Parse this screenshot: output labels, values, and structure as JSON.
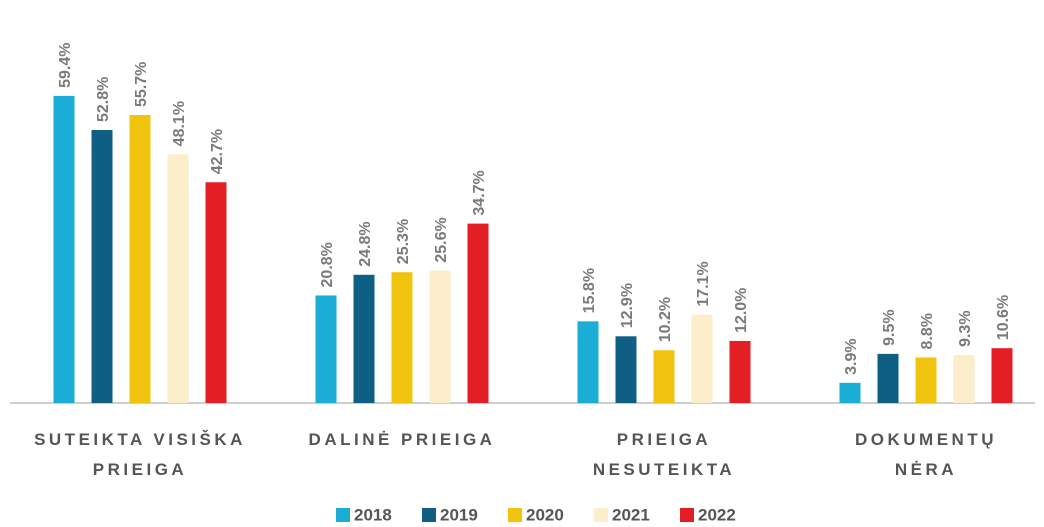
{
  "chart_data": {
    "type": "bar",
    "categories": [
      "SUTEIKTA VISIŠKA\nPRIEIGA",
      "DALINĖ PRIEIGA",
      "PRIEIGA\nNESUTEIKTA",
      "DOKUMENTŲ\nNĖRA"
    ],
    "series": [
      {
        "name": "2018",
        "color": "#1aaed6",
        "values": [
          59.4,
          20.8,
          15.8,
          3.9
        ],
        "value_labels": [
          "59.4%",
          "20.8%",
          "15.8%",
          "3.9%"
        ]
      },
      {
        "name": "2019",
        "color": "#0f5f85",
        "values": [
          52.8,
          24.8,
          12.9,
          9.5
        ],
        "value_labels": [
          "52.8%",
          "24.8%",
          "12.9%",
          "9.5%"
        ]
      },
      {
        "name": "2020",
        "color": "#f0c30f",
        "values": [
          55.7,
          25.3,
          10.2,
          8.8
        ],
        "value_labels": [
          "55.7%",
          "25.3%",
          "10.2%",
          "8.8%"
        ]
      },
      {
        "name": "2021",
        "color": "#fdeecb",
        "values": [
          48.1,
          25.6,
          17.1,
          9.3
        ],
        "value_labels": [
          "48.1%",
          "25.6%",
          "17.1%",
          "9.3%"
        ]
      },
      {
        "name": "2022",
        "color": "#e31e24",
        "values": [
          42.7,
          34.7,
          12.0,
          10.6
        ],
        "value_labels": [
          "42.7%",
          "34.7%",
          "12.0%",
          "10.6%"
        ]
      }
    ],
    "legend": "bottom"
  }
}
